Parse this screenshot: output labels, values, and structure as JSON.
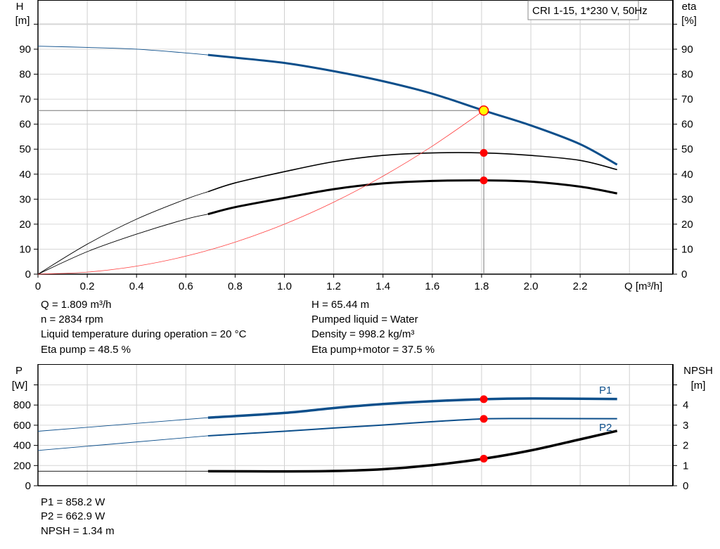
{
  "chart_data": [
    {
      "type": "line",
      "title": "CRI 1-15, 1*230 V, 50Hz",
      "xlabel": "Q [m³/h]",
      "ylabel": "H\n[m]",
      "ylabel_left": [
        "H",
        "[m]"
      ],
      "ylabel_right": [
        "eta",
        "[%]"
      ],
      "xlim": [
        0,
        2.6
      ],
      "ylim": [
        0,
        100
      ],
      "xticks": [
        "0",
        "0.2",
        "0.4",
        "0.6",
        "0.8",
        "1.0",
        "1.2",
        "1.4",
        "1.6",
        "1.8",
        "2.0",
        "2.2"
      ],
      "yticks": [
        "0",
        "10",
        "20",
        "30",
        "40",
        "50",
        "60",
        "70",
        "80",
        "90"
      ],
      "grid": true,
      "operating_point": {
        "Q": 1.809,
        "H": 65.44,
        "eta_pump": 48.5,
        "eta_total": 37.5
      },
      "thick_from_Q": 0.69,
      "series": [
        {
          "key": "H",
          "color": "#0d4f8b",
          "x": [
            0,
            0.2,
            0.4,
            0.6,
            0.69,
            0.8,
            1.0,
            1.2,
            1.4,
            1.6,
            1.809,
            2.0,
            2.2,
            2.35
          ],
          "y": [
            91.2,
            90.7,
            90,
            88.5,
            87.7,
            86.6,
            84.5,
            81.2,
            77.2,
            72.2,
            65.44,
            59.5,
            52,
            43.8
          ]
        },
        {
          "key": "eta_pump",
          "color": "#000000",
          "x": [
            0,
            0.2,
            0.4,
            0.6,
            0.69,
            0.8,
            1.0,
            1.2,
            1.4,
            1.6,
            1.809,
            2.0,
            2.2,
            2.35
          ],
          "y": [
            0,
            12,
            22,
            30,
            33,
            36.5,
            41,
            45,
            47.5,
            48.5,
            48.5,
            47.5,
            45.5,
            41.8
          ]
        },
        {
          "key": "eta_total",
          "color": "#000000",
          "x": [
            0,
            0.2,
            0.4,
            0.6,
            0.69,
            0.8,
            1.0,
            1.2,
            1.4,
            1.6,
            1.809,
            2.0,
            2.2,
            2.35
          ],
          "y": [
            0,
            9,
            16,
            22,
            24,
            26.8,
            30.5,
            34,
            36.3,
            37.3,
            37.5,
            37,
            35,
            32.3
          ]
        },
        {
          "key": "system",
          "color": "#ff4040",
          "x": [
            0,
            0.2,
            0.4,
            0.6,
            0.8,
            1.0,
            1.2,
            1.4,
            1.6,
            1.809
          ],
          "y": [
            0,
            0.8,
            3.2,
            7.2,
            12.8,
            20,
            28.8,
            39.2,
            51.2,
            65.44
          ]
        }
      ]
    },
    {
      "type": "line",
      "ylabel_left": [
        "P",
        "[W]"
      ],
      "ylabel_right": [
        "NPSH",
        "[m]"
      ],
      "xlim": [
        0,
        2.6
      ],
      "ylim": [
        0,
        1000
      ],
      "y2lim": [
        0,
        5
      ],
      "yticks": [
        "0",
        "200",
        "400",
        "600",
        "800"
      ],
      "y2ticks": [
        "0",
        "1",
        "2",
        "3",
        "4"
      ],
      "grid": true,
      "series": [
        {
          "key": "P1",
          "name": "P1",
          "color": "#0d4f8b",
          "x": [
            0,
            0.69,
            1.0,
            1.2,
            1.4,
            1.6,
            1.809,
            2.0,
            2.35
          ],
          "y": [
            540,
            675,
            722,
            770,
            810,
            838,
            858.2,
            865,
            860
          ]
        },
        {
          "key": "P2",
          "name": "P2",
          "color": "#0d4f8b",
          "x": [
            0,
            0.69,
            1.0,
            1.2,
            1.4,
            1.6,
            1.809,
            2.0,
            2.35
          ],
          "y": [
            350,
            495,
            540,
            572,
            602,
            635,
            662.9,
            666,
            665
          ]
        },
        {
          "key": "NPSH",
          "color": "#000000",
          "axis": "right",
          "x": [
            0,
            0.69,
            1.0,
            1.2,
            1.4,
            1.6,
            1.809,
            2.0,
            2.2,
            2.35
          ],
          "y": [
            0.72,
            0.72,
            0.71,
            0.73,
            0.82,
            1.02,
            1.34,
            1.75,
            2.3,
            2.72
          ]
        }
      ]
    }
  ],
  "info": {
    "q": "Q = 1.809 m³/h",
    "n": "n = 2834 rpm",
    "temp": "Liquid temperature during operation = 20 °C",
    "eta_pump": "Eta pump = 48.5 %",
    "h": "H = 65.44 m",
    "liquid": "Pumped liquid = Water",
    "density": "Density = 998.2 kg/m³",
    "eta_total": "Eta pump+motor = 37.5 %",
    "p1": "P1 = 858.2 W",
    "p2": "P2 = 662.9 W",
    "npsh": "NPSH = 1.34 m"
  },
  "colors": {
    "blue": "#0d4f8b",
    "red": "#ff0000",
    "yellow": "#ffff00",
    "grid": "#d0d0d0"
  }
}
